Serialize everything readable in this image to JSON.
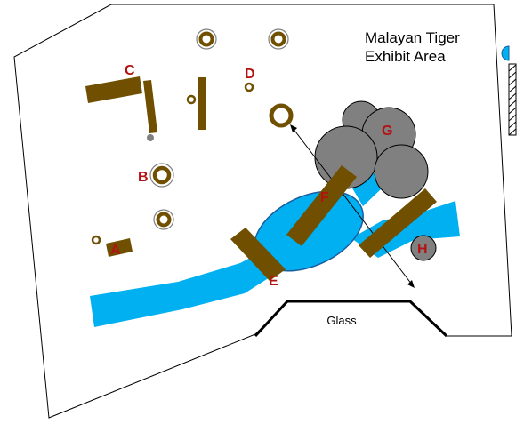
{
  "title": {
    "line1": "Malayan Tiger",
    "line2": "Exhibit Area"
  },
  "glass_label": "Glass",
  "zones": {
    "A": "A",
    "B": "B",
    "C": "C",
    "D": "D",
    "E": "E",
    "F": "F",
    "G": "G",
    "H": "H"
  },
  "colors": {
    "wood": "#705000",
    "water": "#00b0f0",
    "rock": "#808080",
    "label": "#b31212",
    "outline": "#000000"
  }
}
